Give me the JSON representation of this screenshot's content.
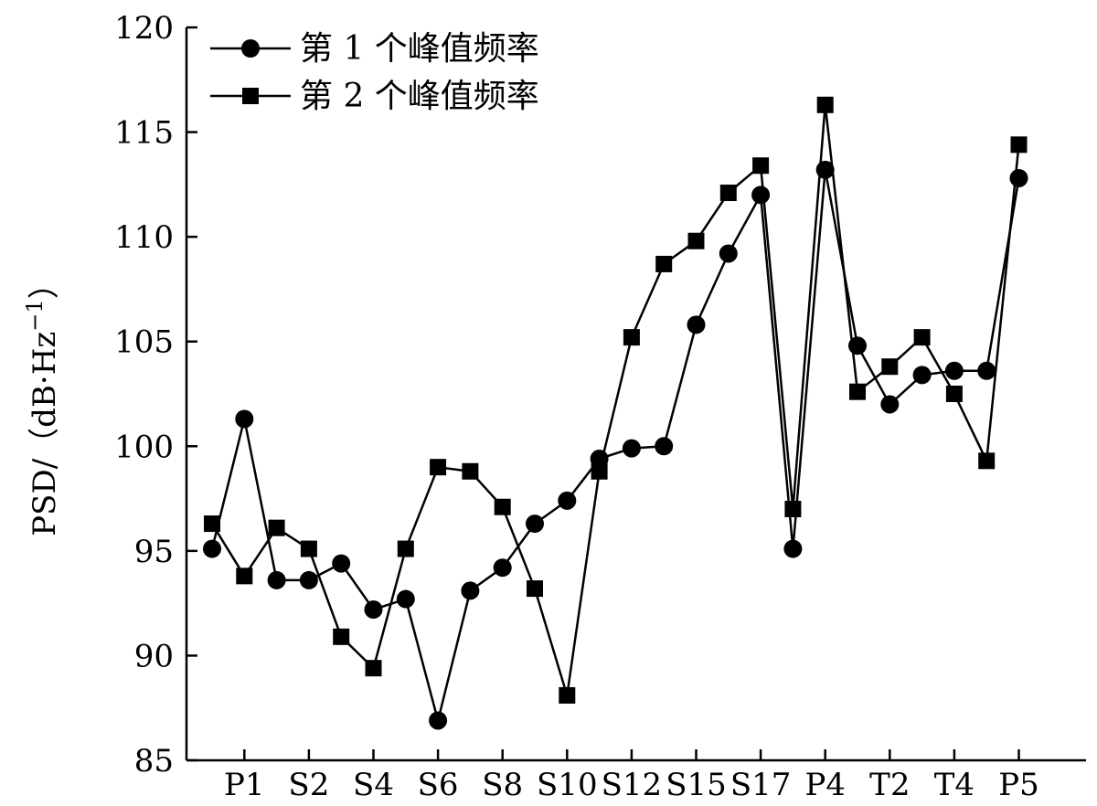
{
  "chart_data": {
    "type": "line",
    "title": "",
    "xlabel": "",
    "ylabel": "PSD/（dB·Hz",
    "ylabel_superscript": "−1",
    "ylabel_close": "）",
    "ylim": [
      85,
      120
    ],
    "yticks": [
      85,
      90,
      95,
      100,
      105,
      110,
      115,
      120
    ],
    "x_tick_labels": [
      "P1",
      "S2",
      "S4",
      "S6",
      "S8",
      "S10",
      "S12",
      "S15",
      "S17",
      "P4",
      "T2",
      "T4",
      "P5"
    ],
    "legend_position": "top-left",
    "grid": false,
    "series": [
      {
        "name": "第 1 个峰值频率",
        "marker": "circle",
        "color": "#000000",
        "values": [
          95.1,
          101.3,
          93.6,
          93.6,
          94.4,
          92.2,
          92.7,
          86.9,
          93.1,
          94.2,
          96.3,
          97.4,
          99.4,
          99.9,
          100.0,
          105.8,
          109.2,
          112.0,
          95.1,
          113.2,
          104.8,
          102.0,
          103.4,
          103.6,
          103.6,
          112.8
        ]
      },
      {
        "name": "第 2 个峰值频率",
        "marker": "square",
        "color": "#000000",
        "values": [
          96.3,
          93.8,
          96.1,
          95.1,
          90.9,
          89.4,
          95.1,
          99.0,
          98.8,
          97.1,
          93.2,
          88.1,
          98.8,
          105.2,
          108.7,
          109.8,
          112.1,
          113.4,
          97.0,
          116.3,
          102.6,
          103.8,
          105.2,
          102.5,
          99.3,
          114.4
        ]
      }
    ]
  }
}
